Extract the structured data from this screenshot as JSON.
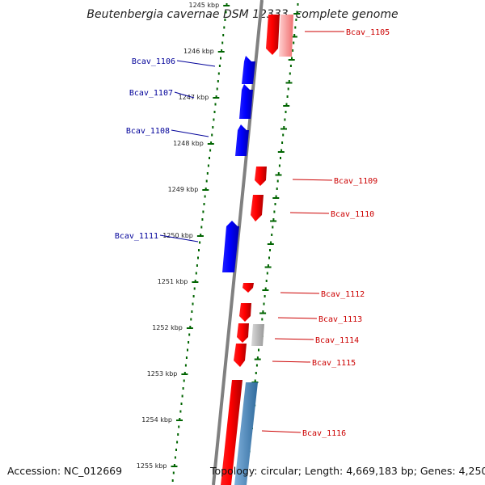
{
  "title": "Beutenbergia cavernae DSM 12333, complete genome",
  "accession": "Accession: NC_012669",
  "topology": "Topology: circular; Length: 4,669,183 bp; Genes: 4,250",
  "ticks": [
    "1245 kbp",
    "1246 kbp",
    "1247 kbp",
    "1248 kbp",
    "1249 kbp",
    "1250 kbp",
    "1251 kbp",
    "1252 kbp",
    "1253 kbp",
    "1254 kbp",
    "1255 kbp"
  ],
  "genes": [
    {
      "label": "Bcav_1105",
      "strand": "plus"
    },
    {
      "label": "Bcav_1106",
      "strand": "minus"
    },
    {
      "label": "Bcav_1107",
      "strand": "minus"
    },
    {
      "label": "Bcav_1108",
      "strand": "minus"
    },
    {
      "label": "Bcav_1109",
      "strand": "plus"
    },
    {
      "label": "Bcav_1110",
      "strand": "plus"
    },
    {
      "label": "Bcav_1111",
      "strand": "minus"
    },
    {
      "label": "Bcav_1112",
      "strand": "plus"
    },
    {
      "label": "Bcav_1113",
      "strand": "plus"
    },
    {
      "label": "Bcav_1114",
      "strand": "plus"
    },
    {
      "label": "Bcav_1115",
      "strand": "plus"
    },
    {
      "label": "Bcav_1116",
      "strand": "plus"
    }
  ],
  "colors": {
    "plus_strand": "#ff0000",
    "minus_strand": "#0000ff",
    "backbone": "#808080",
    "tick_marks": "#006400",
    "plus_label": "#cc0000",
    "minus_label": "#000099",
    "faded_plus": "#f08080",
    "grey_feature": "#b0b0b0",
    "steel_feature": "#4682b4"
  }
}
